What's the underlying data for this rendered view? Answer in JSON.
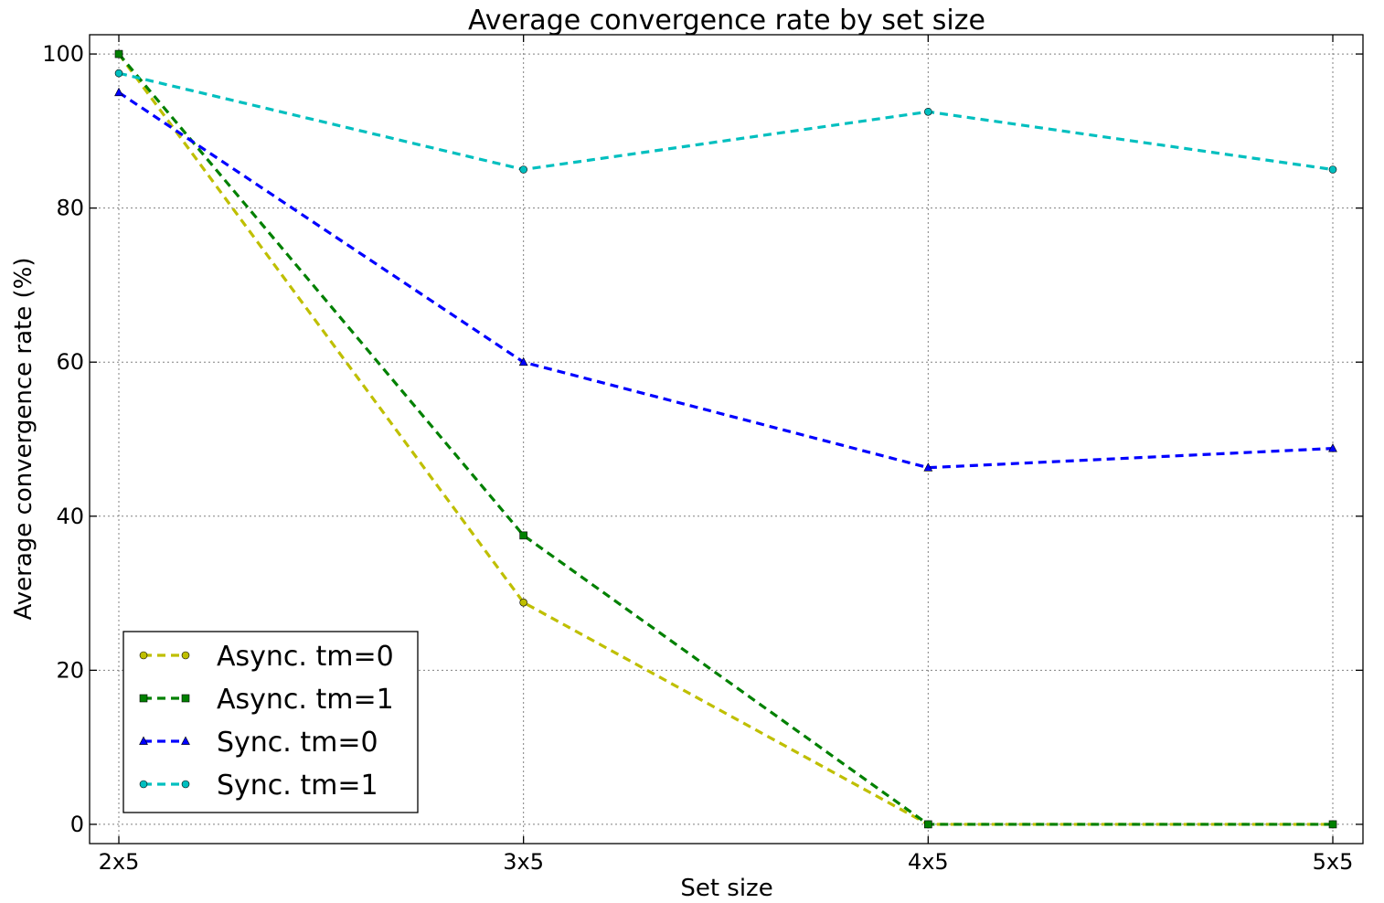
{
  "chart_data": {
    "type": "line",
    "title": "Average convergence rate by set size",
    "xlabel": "Set size",
    "ylabel": "Average convergence rate (%)",
    "categories": [
      "2x5",
      "3x5",
      "4x5",
      "5x5"
    ],
    "ylim": [
      -2.5,
      102.5
    ],
    "yticks": [
      0,
      20,
      40,
      60,
      80,
      100
    ],
    "grid": true,
    "legend_position": "lower-left",
    "series": [
      {
        "name": "Async. tm=0",
        "color": "#bfbf00",
        "marker": "circle",
        "values": [
          100,
          28.8,
          0,
          0
        ]
      },
      {
        "name": "Async. tm=1",
        "color": "#008000",
        "marker": "square",
        "values": [
          100,
          37.5,
          0,
          0
        ]
      },
      {
        "name": "Sync. tm=0",
        "color": "#0000ff",
        "marker": "triangle",
        "values": [
          95,
          60,
          46.3,
          48.8
        ]
      },
      {
        "name": "Sync. tm=1",
        "color": "#00bfbf",
        "marker": "circle",
        "values": [
          97.5,
          85,
          92.5,
          85
        ]
      }
    ]
  }
}
